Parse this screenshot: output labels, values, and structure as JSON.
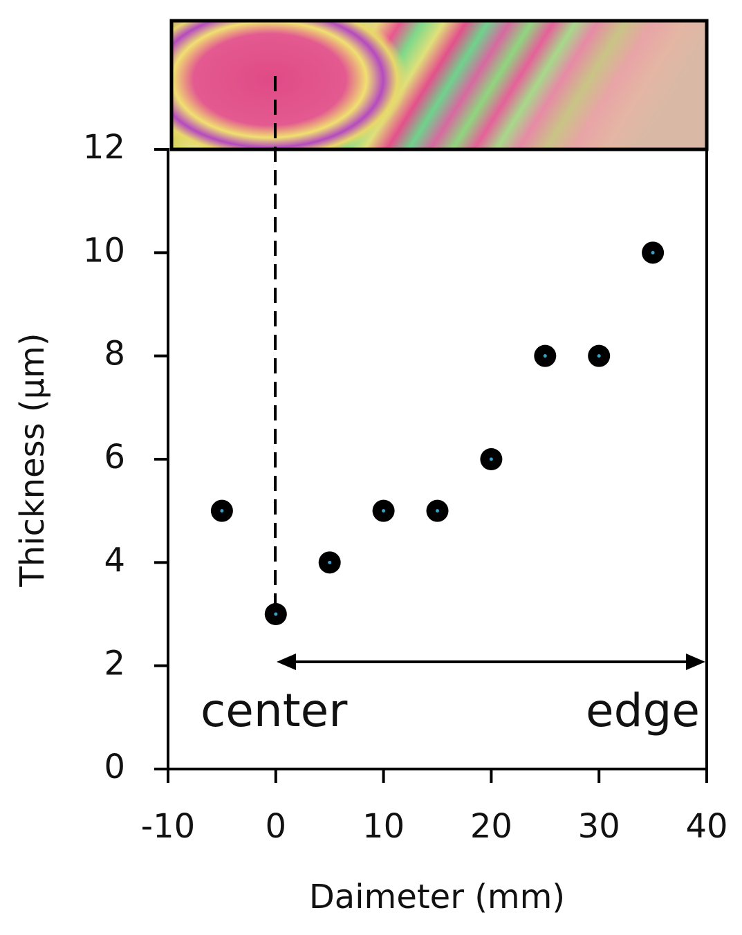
{
  "chart_data": {
    "type": "scatter",
    "x": [
      -5,
      0,
      5,
      10,
      15,
      20,
      25,
      30,
      35
    ],
    "values": [
      5,
      3,
      4,
      5,
      5,
      6,
      8,
      8,
      10
    ],
    "color": "#000000",
    "xlabel": "Daimeter (mm)",
    "ylabel": "Thickness (μm)",
    "xlim": [
      -10,
      40
    ],
    "xticks": [
      -10,
      0,
      10,
      20,
      30,
      40
    ],
    "ylim": [
      0,
      12
    ],
    "yticks": [
      0,
      2,
      4,
      6,
      8,
      10,
      12
    ],
    "annotations": [
      "center",
      "edge"
    ]
  }
}
